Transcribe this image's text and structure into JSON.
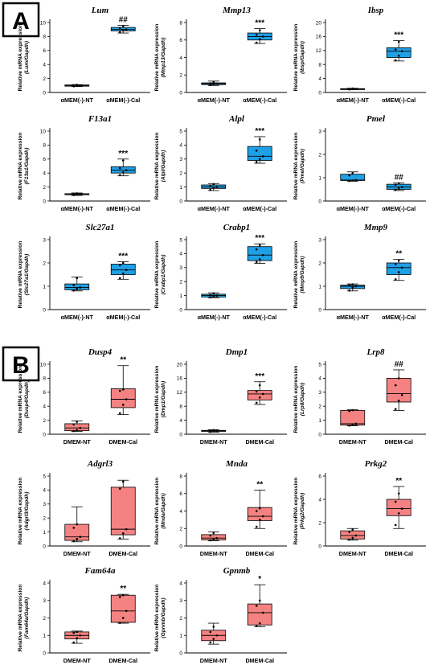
{
  "panels": [
    {
      "letter": "A",
      "color": "#1ea0e6"
    },
    {
      "letter": "B",
      "color": "#f58282"
    }
  ],
  "ylabel_prefix": "Relative mRNA expression",
  "chart_data": [
    {
      "type": "box",
      "panel": "A",
      "title": "Lum",
      "ylabel": "Relative mRNA expression",
      "ylabel_sub": "(Lum/Gapdh)",
      "ylim": [
        0,
        10
      ],
      "yticks": [
        0,
        2,
        4,
        6,
        8,
        10
      ],
      "categories": [
        "αMEM(-)-NT",
        "αMEM(-)-Cal"
      ],
      "boxes": [
        {
          "min": 0.85,
          "q1": 0.9,
          "median": 1.0,
          "q3": 1.08,
          "max": 1.12,
          "points": [
            0.88,
            0.95,
            1.0,
            1.05,
            1.1
          ]
        },
        {
          "min": 8.5,
          "q1": 8.8,
          "median": 9.0,
          "q3": 9.3,
          "max": 9.6,
          "points": [
            8.6,
            8.9,
            9.0,
            9.2,
            9.5
          ]
        }
      ],
      "significance": [
        "",
        "##"
      ]
    },
    {
      "type": "box",
      "panel": "A",
      "title": "Mmp13",
      "ylabel": "Relative mRNA expression",
      "ylabel_sub": "(Mmp13/Gapdh)",
      "ylim": [
        0,
        8
      ],
      "yticks": [
        0,
        2,
        4,
        6,
        8
      ],
      "categories": [
        "αMEM(-)-NT",
        "αMEM(-)-Cal"
      ],
      "boxes": [
        {
          "min": 0.8,
          "q1": 0.9,
          "median": 1.0,
          "q3": 1.1,
          "max": 1.3,
          "points": [
            0.85,
            0.95,
            1.0,
            1.05,
            1.2
          ]
        },
        {
          "min": 5.6,
          "q1": 6.0,
          "median": 6.4,
          "q3": 6.8,
          "max": 7.3,
          "points": [
            5.7,
            6.1,
            6.4,
            6.6,
            7.1
          ]
        }
      ],
      "significance": [
        "",
        "***"
      ]
    },
    {
      "type": "box",
      "panel": "A",
      "title": "Ibsp",
      "ylabel": "Relative mRNA expression",
      "ylabel_sub": "(Ibsp/Gapdh)",
      "ylim": [
        0,
        20
      ],
      "yticks": [
        0,
        4,
        8,
        12,
        16,
        20
      ],
      "categories": [
        "αMEM(-)-NT",
        "αMEM(-)-Cal"
      ],
      "boxes": [
        {
          "min": 0.8,
          "q1": 0.9,
          "median": 1.0,
          "q3": 1.1,
          "max": 1.2,
          "points": [
            0.85,
            0.95,
            1.0,
            1.05,
            1.15
          ]
        },
        {
          "min": 9.0,
          "q1": 10.0,
          "median": 11.8,
          "q3": 12.8,
          "max": 14.8,
          "points": [
            9.2,
            10.5,
            11.8,
            12.3,
            14.5
          ]
        }
      ],
      "significance": [
        "",
        "***"
      ]
    },
    {
      "type": "box",
      "panel": "A",
      "title": "F13a1",
      "ylabel": "Relative mRNA expression",
      "ylabel_sub": "(F13a1/Gapdh)",
      "ylim": [
        0,
        10
      ],
      "yticks": [
        0,
        2,
        4,
        6,
        8,
        10
      ],
      "categories": [
        "αMEM(-)-NT",
        "αMEM(-)-Cal"
      ],
      "boxes": [
        {
          "min": 0.8,
          "q1": 0.9,
          "median": 1.0,
          "q3": 1.05,
          "max": 1.15,
          "points": [
            0.85,
            0.95,
            1.0,
            1.05,
            1.1
          ]
        },
        {
          "min": 3.6,
          "q1": 4.0,
          "median": 4.4,
          "q3": 4.9,
          "max": 6.0,
          "points": [
            3.7,
            4.1,
            4.4,
            4.7,
            5.8
          ]
        }
      ],
      "significance": [
        "",
        "***"
      ]
    },
    {
      "type": "box",
      "panel": "A",
      "title": "Alpl",
      "ylabel": "Relative mRNA expression",
      "ylabel_sub": "(Alpl/Gapdh)",
      "ylim": [
        0,
        5
      ],
      "yticks": [
        0,
        1,
        2,
        3,
        4,
        5
      ],
      "categories": [
        "αMEM(-)-NT",
        "αMEM(-)-Cal"
      ],
      "boxes": [
        {
          "min": 0.75,
          "q1": 0.9,
          "median": 1.0,
          "q3": 1.15,
          "max": 1.25,
          "points": [
            0.8,
            0.95,
            1.0,
            1.1,
            1.2
          ]
        },
        {
          "min": 2.7,
          "q1": 2.9,
          "median": 3.2,
          "q3": 3.9,
          "max": 4.6,
          "points": [
            2.8,
            3.0,
            3.2,
            3.6,
            4.4
          ]
        }
      ],
      "significance": [
        "",
        "***"
      ]
    },
    {
      "type": "box",
      "panel": "A",
      "title": "Pmel",
      "ylabel": "Relative mRNA expression",
      "ylabel_sub": "(Pmel/Gapdh)",
      "ylim": [
        0,
        3
      ],
      "yticks": [
        0,
        1,
        2,
        3
      ],
      "categories": [
        "αMEM(-)-NT",
        "αMEM(-)-Cal"
      ],
      "boxes": [
        {
          "min": 0.85,
          "q1": 0.88,
          "median": 0.9,
          "q3": 1.15,
          "max": 1.25,
          "points": [
            0.86,
            0.88,
            0.9,
            1.1,
            1.2
          ]
        },
        {
          "min": 0.45,
          "q1": 0.5,
          "median": 0.6,
          "q3": 0.72,
          "max": 0.78,
          "points": [
            0.48,
            0.55,
            0.6,
            0.7,
            0.76
          ]
        }
      ],
      "significance": [
        "",
        "##"
      ]
    },
    {
      "type": "box",
      "panel": "A",
      "title": "Slc27a1",
      "ylabel": "Relative mRNA expression",
      "ylabel_sub": "(Slc27a1/Gapdh)",
      "ylim": [
        0,
        3
      ],
      "yticks": [
        0,
        1,
        2,
        3
      ],
      "categories": [
        "αMEM(-)-NT",
        "αMEM(-)-Cal"
      ],
      "boxes": [
        {
          "min": 0.8,
          "q1": 0.85,
          "median": 0.95,
          "q3": 1.1,
          "max": 1.4,
          "points": [
            0.82,
            0.9,
            0.95,
            1.05,
            1.35
          ]
        },
        {
          "min": 1.3,
          "q1": 1.5,
          "median": 1.7,
          "q3": 1.95,
          "max": 2.05,
          "points": [
            1.35,
            1.55,
            1.7,
            1.9,
            2.0
          ]
        }
      ],
      "significance": [
        "",
        "***"
      ]
    },
    {
      "type": "box",
      "panel": "A",
      "title": "Crabp1",
      "ylabel": "Relative mRNA expression",
      "ylabel_sub": "(Crabp1/Gapdh)",
      "ylim": [
        0,
        5
      ],
      "yticks": [
        0,
        1,
        2,
        3,
        4,
        5
      ],
      "categories": [
        "αMEM(-)-NT",
        "αMEM(-)-Cal"
      ],
      "boxes": [
        {
          "min": 0.85,
          "q1": 0.9,
          "median": 1.0,
          "q3": 1.1,
          "max": 1.2,
          "points": [
            0.88,
            0.95,
            1.0,
            1.05,
            1.15
          ]
        },
        {
          "min": 3.3,
          "q1": 3.5,
          "median": 3.9,
          "q3": 4.5,
          "max": 4.7,
          "points": [
            3.4,
            3.6,
            3.9,
            4.3,
            4.6
          ]
        }
      ],
      "significance": [
        "",
        "***"
      ]
    },
    {
      "type": "box",
      "panel": "A",
      "title": "Mmp9",
      "ylabel": "Relative mRNA expression",
      "ylabel_sub": "(Mmp9/Gapdh)",
      "ylim": [
        0,
        3
      ],
      "yticks": [
        0,
        1,
        2,
        3
      ],
      "categories": [
        "αMEM(-)-NT",
        "αMEM(-)-Cal"
      ],
      "boxes": [
        {
          "min": 0.8,
          "q1": 0.9,
          "median": 1.0,
          "q3": 1.05,
          "max": 1.1,
          "points": [
            0.82,
            0.95,
            1.0,
            1.05,
            1.08
          ]
        },
        {
          "min": 1.25,
          "q1": 1.5,
          "median": 1.8,
          "q3": 2.0,
          "max": 2.15,
          "points": [
            1.3,
            1.6,
            1.8,
            1.95,
            2.1
          ]
        }
      ],
      "significance": [
        "",
        "**"
      ]
    },
    {
      "type": "box",
      "panel": "B",
      "title": "Dusp4",
      "ylabel": "Relative mRNA expression",
      "ylabel_sub": "(Dusp4/Gapdh)",
      "ylim": [
        0,
        10
      ],
      "yticks": [
        0,
        2,
        4,
        6,
        8,
        10
      ],
      "categories": [
        "DMEM-NT",
        "DMEM-Cal"
      ],
      "boxes": [
        {
          "min": 0.4,
          "q1": 0.5,
          "median": 0.9,
          "q3": 1.5,
          "max": 1.9,
          "points": [
            0.45,
            0.6,
            0.9,
            1.4,
            1.8
          ]
        },
        {
          "min": 2.8,
          "q1": 3.8,
          "median": 5.0,
          "q3": 6.5,
          "max": 9.8,
          "points": [
            3.0,
            4.2,
            5.0,
            6.2,
            6.4
          ]
        }
      ],
      "significance": [
        "",
        "**"
      ]
    },
    {
      "type": "box",
      "panel": "B",
      "title": "Dmp1",
      "ylabel": "Relative mRNA expression",
      "ylabel_sub": "(Dmp1/Gapdh)",
      "ylim": [
        0,
        20
      ],
      "yticks": [
        0,
        4,
        8,
        12,
        16,
        20
      ],
      "categories": [
        "DMEM-NT",
        "DMEM-Cal"
      ],
      "boxes": [
        {
          "min": 0.6,
          "q1": 0.8,
          "median": 1.0,
          "q3": 1.1,
          "max": 1.3,
          "points": [
            0.7,
            0.9,
            1.0,
            1.05,
            1.2
          ]
        },
        {
          "min": 8.5,
          "q1": 9.8,
          "median": 11.5,
          "q3": 12.5,
          "max": 15.0,
          "points": [
            9.0,
            10.5,
            11.5,
            12.2,
            14.0
          ]
        }
      ],
      "significance": [
        "",
        "***"
      ]
    },
    {
      "type": "box",
      "panel": "B",
      "title": "Lrp8",
      "ylabel": "Relative mRNA expression",
      "ylabel_sub": "(Lrp8/Gapdh)",
      "ylim": [
        0,
        5
      ],
      "yticks": [
        0,
        1,
        2,
        3,
        4,
        5
      ],
      "categories": [
        "DMEM-NT",
        "DMEM-Cal"
      ],
      "boxes": [
        {
          "min": 0.6,
          "q1": 0.65,
          "median": 0.75,
          "q3": 1.7,
          "max": 1.75,
          "points": [
            0.62,
            0.7,
            0.75,
            1.65,
            1.72
          ]
        },
        {
          "min": 1.7,
          "q1": 2.3,
          "median": 2.9,
          "q3": 4.0,
          "max": 4.6,
          "points": [
            1.8,
            2.4,
            2.8,
            3.5,
            4.0
          ]
        }
      ],
      "significance": [
        "",
        "##"
      ]
    },
    {
      "type": "box",
      "panel": "B",
      "title": "Adgrl3",
      "ylabel": "Relative mRNA expression",
      "ylabel_sub": "(Adgrl3/Gapdh)",
      "ylim": [
        0,
        5
      ],
      "yticks": [
        0,
        1,
        2,
        3,
        4,
        5
      ],
      "categories": [
        "DMEM-NT",
        "DMEM-Cal"
      ],
      "boxes": [
        {
          "min": 0.3,
          "q1": 0.4,
          "median": 0.65,
          "q3": 1.55,
          "max": 2.8,
          "points": [
            0.35,
            0.5,
            0.65,
            1.3,
            1.55
          ]
        },
        {
          "min": 0.5,
          "q1": 0.8,
          "median": 1.2,
          "q3": 4.2,
          "max": 4.7,
          "points": [
            0.55,
            0.9,
            1.2,
            4.1,
            4.6
          ]
        }
      ],
      "significance": [
        "",
        ""
      ]
    },
    {
      "type": "box",
      "panel": "B",
      "title": "Mnda",
      "ylabel": "Relative mRNA expression",
      "ylabel_sub": "(Mnda/Gapdh)",
      "ylim": [
        0,
        8
      ],
      "yticks": [
        0,
        2,
        4,
        6,
        8
      ],
      "categories": [
        "DMEM-NT",
        "DMEM-Cal"
      ],
      "boxes": [
        {
          "min": 0.6,
          "q1": 0.7,
          "median": 0.9,
          "q3": 1.3,
          "max": 1.6,
          "points": [
            0.65,
            0.8,
            0.9,
            1.2,
            1.5
          ]
        },
        {
          "min": 2.0,
          "q1": 2.9,
          "median": 3.4,
          "q3": 4.4,
          "max": 6.4,
          "points": [
            2.2,
            3.0,
            3.4,
            4.0,
            4.3
          ]
        }
      ],
      "significance": [
        "",
        "**"
      ]
    },
    {
      "type": "box",
      "panel": "B",
      "title": "Prkg2",
      "ylabel": "Relative mRNA expression",
      "ylabel_sub": "(Prkg2/Gapdh)",
      "ylim": [
        0,
        6
      ],
      "yticks": [
        0,
        2,
        4,
        6
      ],
      "categories": [
        "DMEM-NT",
        "DMEM-Cal"
      ],
      "boxes": [
        {
          "min": 0.5,
          "q1": 0.6,
          "median": 0.9,
          "q3": 1.3,
          "max": 1.5,
          "points": [
            0.55,
            0.7,
            0.9,
            1.2,
            1.4
          ]
        },
        {
          "min": 1.5,
          "q1": 2.6,
          "median": 3.2,
          "q3": 4.0,
          "max": 5.1,
          "points": [
            1.8,
            2.8,
            3.2,
            3.8,
            4.5
          ]
        }
      ],
      "significance": [
        "",
        "**"
      ]
    },
    {
      "type": "box",
      "panel": "B",
      "title": "Fam64a",
      "ylabel": "Relative mRNA expression",
      "ylabel_sub": "(Fam64a/Gapdh)",
      "ylim": [
        0,
        4
      ],
      "yticks": [
        0,
        1,
        2,
        3,
        4
      ],
      "categories": [
        "DMEM-NT",
        "DMEM-Cal"
      ],
      "boxes": [
        {
          "min": 0.55,
          "q1": 0.8,
          "median": 1.0,
          "q3": 1.2,
          "max": 1.25,
          "points": [
            0.6,
            0.85,
            1.0,
            1.15,
            1.2
          ]
        },
        {
          "min": 1.7,
          "q1": 1.75,
          "median": 2.4,
          "q3": 3.3,
          "max": 3.35,
          "points": [
            1.72,
            2.0,
            2.4,
            3.2,
            3.3
          ]
        }
      ],
      "significance": [
        "",
        "**"
      ]
    },
    {
      "type": "box",
      "panel": "B",
      "title": "Gpnmb",
      "ylabel": "Relative mRNA expression",
      "ylabel_sub": "(Gpnmb/Gapdh)",
      "ylim": [
        0,
        4
      ],
      "yticks": [
        0,
        1,
        2,
        3,
        4
      ],
      "categories": [
        "DMEM-NT",
        "DMEM-Cal"
      ],
      "boxes": [
        {
          "min": 0.5,
          "q1": 0.7,
          "median": 1.0,
          "q3": 1.3,
          "max": 1.7,
          "points": [
            0.6,
            0.8,
            1.0,
            1.2,
            1.5
          ]
        },
        {
          "min": 1.5,
          "q1": 1.6,
          "median": 2.3,
          "q3": 2.8,
          "max": 3.9,
          "points": [
            1.55,
            1.7,
            2.3,
            2.7,
            3.0
          ]
        }
      ],
      "significance": [
        "",
        "*"
      ]
    }
  ]
}
